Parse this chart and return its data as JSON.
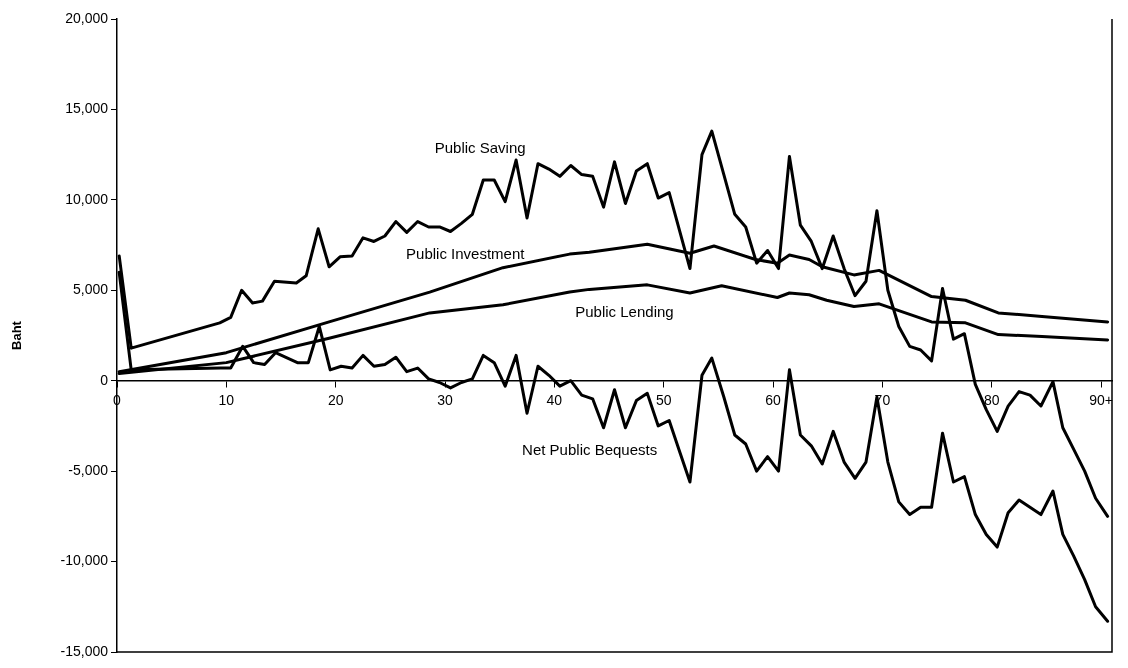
{
  "chart_data": {
    "type": "line",
    "ylabel": "Baht",
    "xlim": [
      0,
      91
    ],
    "xticks": [
      0,
      10,
      20,
      30,
      40,
      50,
      60,
      70,
      80,
      {
        "value": 90,
        "label": "90+"
      }
    ],
    "ylim": [
      -15000,
      20000
    ],
    "yticks": [
      {
        "value": -15000,
        "label": "-15,000"
      },
      {
        "value": -10000,
        "label": "-10,000"
      },
      {
        "value": -5000,
        "label": "-5,000"
      },
      0,
      {
        "value": 5000,
        "label": "5,000"
      },
      {
        "value": 10000,
        "label": "10,000"
      },
      {
        "value": 15000,
        "label": "15,000"
      },
      {
        "value": 20000,
        "label": "20,000"
      }
    ],
    "grid": false,
    "legend": false,
    "marker": "none",
    "line_style": "solid",
    "series": [
      {
        "name": "Public Saving",
        "color": "#000000",
        "x": [
          0.2,
          1.3,
          9.4,
          10.4,
          11.4,
          12.4,
          13.3,
          14.4,
          16.4,
          17.3,
          18.4,
          19.4,
          20.4,
          21.5,
          22.5,
          23.5,
          24.5,
          25.5,
          26.5,
          27.5,
          28.5,
          29.5,
          30.5,
          31.5,
          32.5,
          33.5,
          34.5,
          35.5,
          36.5,
          37.5,
          38.5,
          39.5,
          40.5,
          41.5,
          42.5,
          43.5,
          44.5,
          45.5,
          46.5,
          47.5,
          48.5,
          49.5,
          50.5,
          52.4,
          53.5,
          54.4,
          55.5,
          56.5,
          57.5,
          58.5,
          59.5,
          60.5,
          61.5,
          62.5,
          63.5,
          64.5,
          65.5,
          66.5,
          67.5,
          68.5,
          69.5,
          70.5,
          71.5,
          72.5,
          73.5,
          74.5,
          75.5,
          76.5,
          77.5,
          78.5,
          79.5,
          80.5,
          81.5,
          82.5,
          83.5,
          84.5,
          85.6,
          86.5,
          87.5,
          88.5,
          89.5,
          90.6
        ],
        "values": [
          6900,
          1800,
          3200,
          3500,
          5000,
          4300,
          4400,
          5500,
          5400,
          5800,
          8400,
          6300,
          6850,
          6900,
          7900,
          7700,
          8000,
          8800,
          8200,
          8800,
          8500,
          8500,
          8250,
          8700,
          9200,
          11100,
          11100,
          9900,
          12200,
          9000,
          12000,
          11700,
          11300,
          11900,
          11400,
          11300,
          9600,
          12100,
          9800,
          11600,
          12000,
          10100,
          10400,
          6200,
          12500,
          13800,
          11400,
          9200,
          8500,
          6500,
          7200,
          6200,
          12400,
          8600,
          7700,
          6200,
          8000,
          6200,
          4700,
          5500,
          9400,
          5000,
          3000,
          1900,
          1700,
          1100,
          5100,
          2300,
          2600,
          -200,
          -1600,
          -2800,
          -1400,
          -600,
          -800,
          -1400,
          -50,
          -2600,
          -3800,
          -5000,
          -6500,
          -7500
        ]
      },
      {
        "name": "Public Investment",
        "color": "#000000",
        "x": [
          0.2,
          10,
          19.4,
          28.6,
          35.3,
          41.4,
          43.2,
          48.5,
          52.4,
          54.6,
          58.4,
          60.4,
          61.5,
          63.3,
          64.5,
          67.4,
          69.7,
          74.5,
          77.6,
          80.6,
          84.6,
          90.6
        ],
        "values": [
          500,
          1550,
          3250,
          4900,
          6250,
          7000,
          7100,
          7550,
          7050,
          7450,
          6700,
          6500,
          6950,
          6700,
          6300,
          5850,
          6100,
          4650,
          4450,
          3750,
          3550,
          3250
        ]
      },
      {
        "name": "Public Lending",
        "color": "#000000",
        "x": [
          0.2,
          10,
          19.4,
          28.6,
          35.3,
          41.4,
          43.2,
          48.5,
          52.4,
          55.3,
          60.4,
          61.5,
          63.3,
          64.9,
          67.4,
          69.7,
          74.5,
          77.6,
          80.6,
          84.6,
          90.6
        ],
        "values": [
          400,
          1000,
          2350,
          3750,
          4200,
          4900,
          5050,
          5300,
          4850,
          5250,
          4600,
          4850,
          4750,
          4450,
          4100,
          4250,
          3250,
          3200,
          2550,
          2450,
          2250
        ]
      },
      {
        "name": "Net Public Bequests",
        "color": "#000000",
        "x": [
          0.2,
          1.3,
          9.5,
          10.4,
          11.5,
          12.5,
          13.5,
          14.5,
          16.5,
          17.5,
          18.5,
          19.5,
          20.5,
          21.5,
          22.5,
          23.5,
          24.5,
          25.5,
          26.5,
          27.5,
          28.5,
          29.5,
          30.5,
          31.5,
          32.5,
          33.5,
          34.5,
          35.5,
          36.5,
          37.5,
          38.5,
          39.5,
          40.5,
          41.5,
          42.5,
          43.5,
          44.5,
          45.5,
          46.5,
          47.5,
          48.5,
          49.5,
          50.5,
          51.5,
          52.4,
          53.5,
          54.4,
          55.5,
          56.5,
          57.5,
          58.5,
          59.5,
          60.5,
          61.5,
          62.5,
          63.5,
          64.5,
          65.5,
          66.5,
          67.5,
          68.5,
          69.5,
          70.5,
          71.5,
          72.5,
          73.5,
          74.5,
          75.5,
          76.5,
          77.5,
          78.5,
          79.5,
          80.5,
          81.5,
          82.5,
          83.5,
          84.5,
          85.6,
          86.5,
          87.5,
          88.5,
          89.5,
          90.6
        ],
        "values": [
          6000,
          600,
          700,
          700,
          1900,
          1000,
          900,
          1550,
          1000,
          1000,
          3000,
          600,
          800,
          700,
          1400,
          800,
          900,
          1300,
          500,
          700,
          100,
          -100,
          -400,
          -100,
          100,
          1400,
          1000,
          -300,
          1400,
          -1800,
          800,
          300,
          -300,
          0,
          -800,
          -1000,
          -2600,
          -500,
          -2600,
          -1100,
          -700,
          -2500,
          -2200,
          -4000,
          -5600,
          300,
          1250,
          -900,
          -3000,
          -3500,
          -5000,
          -4200,
          -5000,
          600,
          -3000,
          -3600,
          -4600,
          -2800,
          -4500,
          -5400,
          -4500,
          -900,
          -4500,
          -6700,
          -7400,
          -7000,
          -7000,
          -2900,
          -5600,
          -5300,
          -7400,
          -8500,
          -9200,
          -7300,
          -6600,
          -7000,
          -7400,
          -6100,
          -8500,
          -9700,
          -11000,
          -12500,
          -13300
        ]
      }
    ]
  }
}
